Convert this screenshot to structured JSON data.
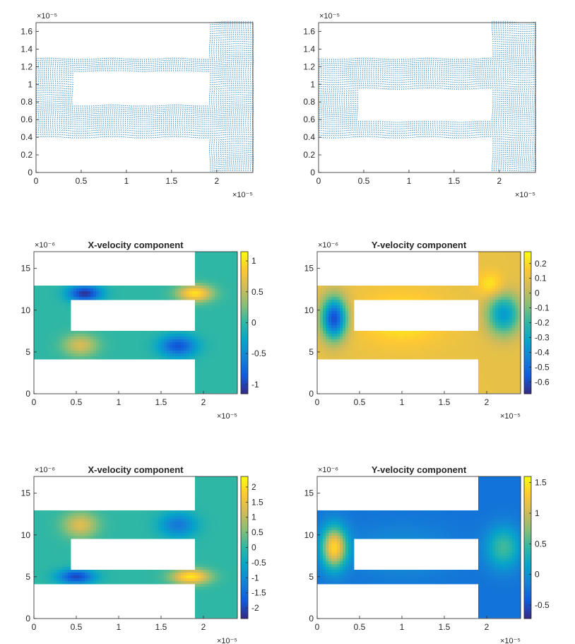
{
  "figure_caption": "",
  "colors": {
    "quiver": "#0072bd",
    "axis": "#262626",
    "background": "#ffffff",
    "parula": [
      "#352a87",
      "#0f5cdd",
      "#1481d6",
      "#06a4ca",
      "#2eb7a4",
      "#87bf77",
      "#d1bb59",
      "#fec832",
      "#f9fb0e"
    ]
  },
  "chart_data": [
    {
      "type": "quiver",
      "title": "",
      "x_exponent": "×10⁻⁵",
      "y_exponent": "×10⁻⁵",
      "xlim": [
        0,
        2.4
      ],
      "ylim": [
        0,
        1.7
      ],
      "xticks": [
        0,
        0.5,
        1,
        1.5,
        2
      ],
      "xtick_labels": [
        "0",
        "0.5",
        "1",
        "1.5",
        "2"
      ],
      "yticks": [
        0,
        0.2,
        0.4,
        0.6,
        0.8,
        1,
        1.2,
        1.4,
        1.6
      ],
      "ytick_labels": [
        "0",
        "0.2",
        "0.4",
        "0.6",
        "0.8",
        "1",
        "1.2",
        "1.4",
        "1.6"
      ],
      "domain": {
        "channel_y": [
          0.4,
          1.3
        ],
        "channel_x": [
          0,
          1.9
        ],
        "hole_x": [
          0.42,
          1.9
        ],
        "hole_y": [
          0.77,
          1.13
        ],
        "chamber_x": [
          1.9,
          2.4
        ],
        "chamber_y": [
          0,
          1.7
        ]
      },
      "colorbar": null
    },
    {
      "type": "quiver",
      "title": "",
      "x_exponent": "×10⁻⁵",
      "y_exponent": "×10⁻⁵",
      "xlim": [
        0,
        2.4
      ],
      "ylim": [
        0,
        1.7
      ],
      "xticks": [
        0,
        0.5,
        1,
        1.5,
        2
      ],
      "xtick_labels": [
        "0",
        "0.5",
        "1",
        "1.5",
        "2"
      ],
      "yticks": [
        0,
        0.2,
        0.4,
        0.6,
        0.8,
        1,
        1.2,
        1.4,
        1.6
      ],
      "ytick_labels": [
        "0",
        "0.2",
        "0.4",
        "0.6",
        "0.8",
        "1",
        "1.2",
        "1.4",
        "1.6"
      ],
      "domain": {
        "channel_y": [
          0.4,
          1.3
        ],
        "channel_x": [
          0,
          1.9
        ],
        "hole_x": [
          0.43,
          1.9
        ],
        "hole_y": [
          0.58,
          0.94
        ],
        "chamber_x": [
          1.9,
          2.4
        ],
        "chamber_y": [
          0,
          1.7
        ]
      },
      "colorbar": null
    },
    {
      "type": "heatmap",
      "title": "X-velocity component",
      "x_exponent": "×10⁻⁵",
      "y_exponent": "×10⁻⁶",
      "xlim": [
        0,
        2.4
      ],
      "ylim": [
        0,
        17
      ],
      "xticks": [
        0,
        0.5,
        1,
        1.5,
        2
      ],
      "xtick_labels": [
        "0",
        "0.5",
        "1",
        "1.5",
        "2"
      ],
      "yticks": [
        0,
        5,
        10,
        15
      ],
      "ytick_labels": [
        "0",
        "5",
        "10",
        "15"
      ],
      "domain": {
        "channel_y": [
          4,
          13
        ],
        "channel_x": [
          0,
          1.9
        ],
        "hole_x": [
          0.43,
          1.9
        ],
        "hole_y": [
          7.5,
          11.2
        ],
        "chamber_x": [
          1.9,
          2.4
        ],
        "chamber_y": [
          0,
          17
        ]
      },
      "field": {
        "base": 0.0,
        "blobs": [
          [
            0.6,
            12.0,
            0.2,
            1.0,
            -1.1
          ],
          [
            1.9,
            12.0,
            0.2,
            1.0,
            1.0
          ],
          [
            0.55,
            5.8,
            0.2,
            1.3,
            0.6
          ],
          [
            1.7,
            5.7,
            0.22,
            1.3,
            -0.9
          ]
        ]
      },
      "colorbar": {
        "range": [
          -1.15,
          1.15
        ],
        "ticks": [
          1,
          0.5,
          0,
          -0.5,
          -1
        ],
        "tick_labels": [
          "1",
          "0.5",
          "0",
          "-0.5",
          "-1"
        ]
      }
    },
    {
      "type": "heatmap",
      "title": "Y-velocity component",
      "x_exponent": "×10⁻⁵",
      "y_exponent": "×10⁻⁶",
      "xlim": [
        0,
        2.4
      ],
      "ylim": [
        0,
        17
      ],
      "xticks": [
        0,
        0.5,
        1,
        1.5,
        2
      ],
      "xtick_labels": [
        "0",
        "0.5",
        "1",
        "1.5",
        "2"
      ],
      "yticks": [
        0,
        5,
        10,
        15
      ],
      "ytick_labels": [
        "0",
        "5",
        "10",
        "15"
      ],
      "domain": {
        "channel_y": [
          4,
          13
        ],
        "channel_x": [
          0,
          1.9
        ],
        "hole_x": [
          0.43,
          1.9
        ],
        "hole_y": [
          7.5,
          11.2
        ],
        "chamber_x": [
          1.9,
          2.4
        ],
        "chamber_y": [
          0,
          17
        ]
      },
      "field": {
        "base": 0.1,
        "blobs": [
          [
            0.2,
            9.0,
            0.15,
            2.5,
            -0.7
          ],
          [
            2.2,
            9.5,
            0.2,
            2.5,
            -0.45
          ],
          [
            1.0,
            9.0,
            0.5,
            3.0,
            0.15
          ],
          [
            2.05,
            13.0,
            0.15,
            1.5,
            0.15
          ]
        ]
      },
      "colorbar": {
        "range": [
          -0.68,
          0.28
        ],
        "ticks": [
          0.2,
          0.1,
          0,
          -0.1,
          -0.2,
          -0.3,
          -0.4,
          -0.5,
          -0.6
        ],
        "tick_labels": [
          "0.2",
          "0.1",
          "0",
          "-0.1",
          "-0.2",
          "-0.3",
          "-0.4",
          "-0.5",
          "-0.6"
        ]
      }
    },
    {
      "type": "heatmap",
      "title": "X-velocity component",
      "x_exponent": "×10⁻⁵",
      "y_exponent": "×10⁻⁶",
      "xlim": [
        0,
        2.4
      ],
      "ylim": [
        0,
        17
      ],
      "xticks": [
        0,
        0.5,
        1,
        1.5,
        2
      ],
      "xtick_labels": [
        "0",
        "0.5",
        "1",
        "1.5",
        "2"
      ],
      "yticks": [
        0,
        5,
        10,
        15
      ],
      "ytick_labels": [
        "0",
        "5",
        "10",
        "15"
      ],
      "domain": {
        "channel_y": [
          4,
          13
        ],
        "channel_x": [
          0,
          1.9
        ],
        "hole_x": [
          0.43,
          1.9
        ],
        "hole_y": [
          6.0,
          9.7
        ],
        "chamber_x": [
          1.9,
          2.4
        ],
        "chamber_y": [
          0,
          17
        ]
      },
      "field": {
        "base": 0.0,
        "blobs": [
          [
            0.55,
            11.2,
            0.2,
            1.5,
            1.3
          ],
          [
            1.7,
            11.2,
            0.22,
            1.5,
            -1.3
          ],
          [
            0.5,
            5.0,
            0.22,
            0.9,
            -2.0
          ],
          [
            1.85,
            5.0,
            0.22,
            0.9,
            2.1
          ]
        ]
      },
      "colorbar": {
        "range": [
          -2.35,
          2.35
        ],
        "ticks": [
          2,
          1.5,
          1,
          0.5,
          0,
          -0.5,
          -1,
          -1.5,
          -2
        ],
        "tick_labels": [
          "2",
          "1.5",
          "1",
          "0.5",
          "0",
          "-0.5",
          "-1",
          "-1.5",
          "-2"
        ]
      }
    },
    {
      "type": "heatmap",
      "title": "Y-velocity component",
      "x_exponent": "×10⁻⁵",
      "y_exponent": "×10⁻⁶",
      "xlim": [
        0,
        2.4
      ],
      "ylim": [
        0,
        17
      ],
      "xticks": [
        0,
        0.5,
        1,
        1.5,
        2
      ],
      "xtick_labels": [
        "0",
        "0.5",
        "1",
        "1.5",
        "2"
      ],
      "yticks": [
        0,
        5,
        10,
        15
      ],
      "ytick_labels": [
        "0",
        "5",
        "10",
        "15"
      ],
      "domain": {
        "channel_y": [
          4,
          13
        ],
        "channel_x": [
          0,
          1.9
        ],
        "hole_x": [
          0.43,
          1.9
        ],
        "hole_y": [
          6.0,
          9.7
        ],
        "chamber_x": [
          1.9,
          2.4
        ],
        "chamber_y": [
          0,
          17
        ]
      },
      "field": {
        "base": -0.25,
        "blobs": [
          [
            0.2,
            8.5,
            0.15,
            2.5,
            1.6
          ],
          [
            2.2,
            8.5,
            0.2,
            2.5,
            0.75
          ],
          [
            1.0,
            8.0,
            0.6,
            3.0,
            0.25
          ]
        ]
      },
      "colorbar": {
        "range": [
          -0.72,
          1.6
        ],
        "ticks": [
          1.5,
          1,
          0.5,
          0,
          -0.5
        ],
        "tick_labels": [
          "1.5",
          "1",
          "0.5",
          "0",
          "-0.5"
        ]
      }
    }
  ]
}
